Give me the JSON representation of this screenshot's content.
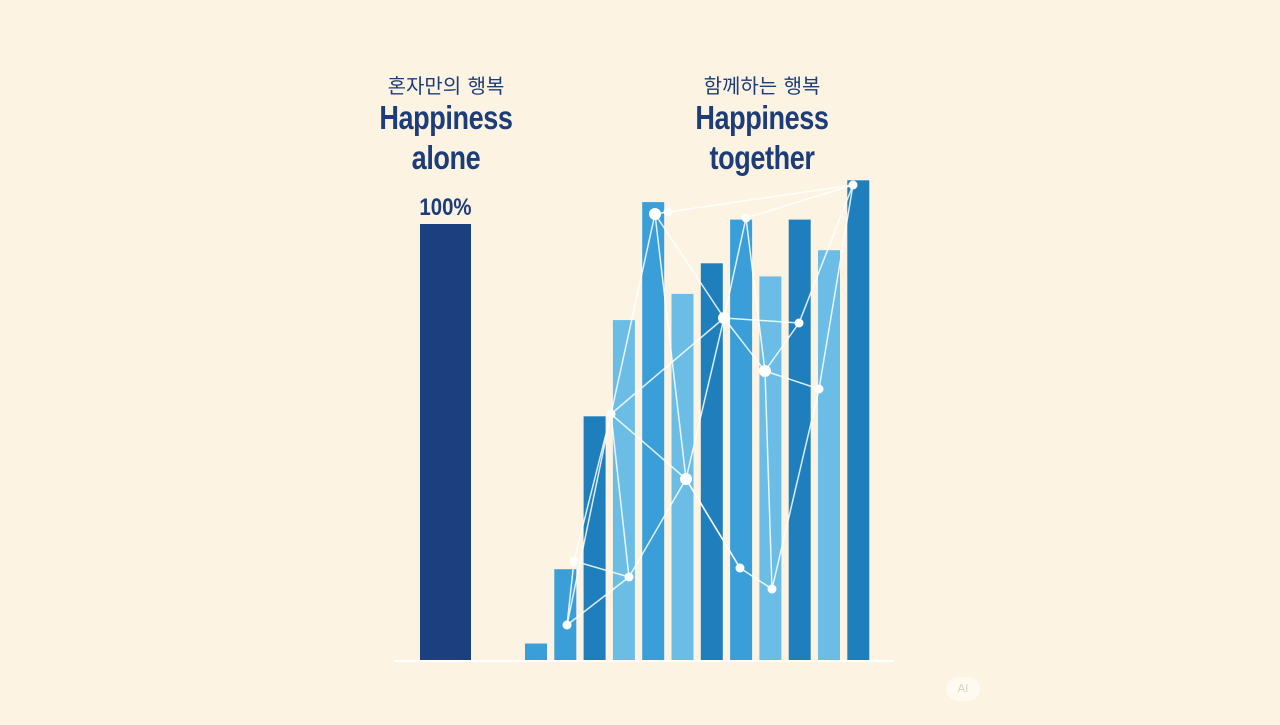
{
  "headings": {
    "alone": {
      "ko": "혼자만의 행복",
      "en": "Happiness alone"
    },
    "together": {
      "ko": "함께하는 행복",
      "en": "Happiness together"
    }
  },
  "colors": {
    "background": "#fcf3e2",
    "alone_bar": "#1c3f80",
    "together_dark": "#1f7fbd",
    "together_mid": "#3a9fd8",
    "together_light": "#6bbde5",
    "network": "#ffffff",
    "text": "#1c3d7a"
  },
  "chart_data": {
    "type": "bar",
    "groups": [
      {
        "name": "혼자만의 행복 / Happiness alone",
        "values": [
          100
        ],
        "data_labels": [
          "100%"
        ]
      },
      {
        "name": "함께하는 행복 / Happiness together",
        "values": [
          4,
          21,
          56,
          78,
          105,
          84,
          91,
          101,
          88,
          101,
          94,
          110
        ],
        "shades": [
          "mid",
          "mid",
          "dark",
          "light",
          "mid",
          "light",
          "dark",
          "mid",
          "light",
          "dark",
          "light",
          "dark"
        ]
      }
    ],
    "grid": false,
    "axes_visible": false,
    "overlay": "network of white nodes and connecting lines over the together bars"
  },
  "watermark": "AI"
}
